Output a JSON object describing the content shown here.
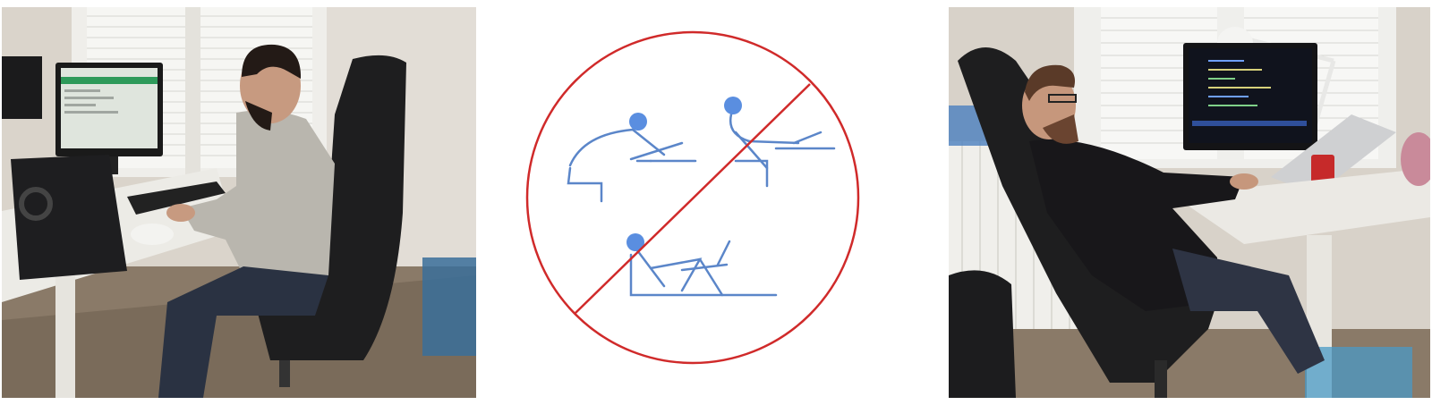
{
  "figure": {
    "panels": [
      {
        "kind": "photo",
        "subject": "person-sitting-upright-at-desk"
      },
      {
        "kind": "prohibition-sign",
        "subject": "bad-sitting-postures"
      },
      {
        "kind": "photo",
        "subject": "person-reclining-at-desk"
      }
    ]
  },
  "colors": {
    "wall": "#d9d4cc",
    "floor": "#8a7a68",
    "desk": "#ecebe6",
    "chair": "#1e1e1f",
    "sweater": "#b9b6ae",
    "jeans": "#2a3242",
    "skin": "#c79a80",
    "hair": "#231a16",
    "prohibition_red": "#d02a2a",
    "figure_blue": "#5b86c9",
    "ball_blue": "#5a8ee0",
    "monitor": "#1a1a1a",
    "screen_light": "#dfe5dd",
    "screen_dark": "#10131d",
    "bin_blue": "#3a6f9a"
  }
}
